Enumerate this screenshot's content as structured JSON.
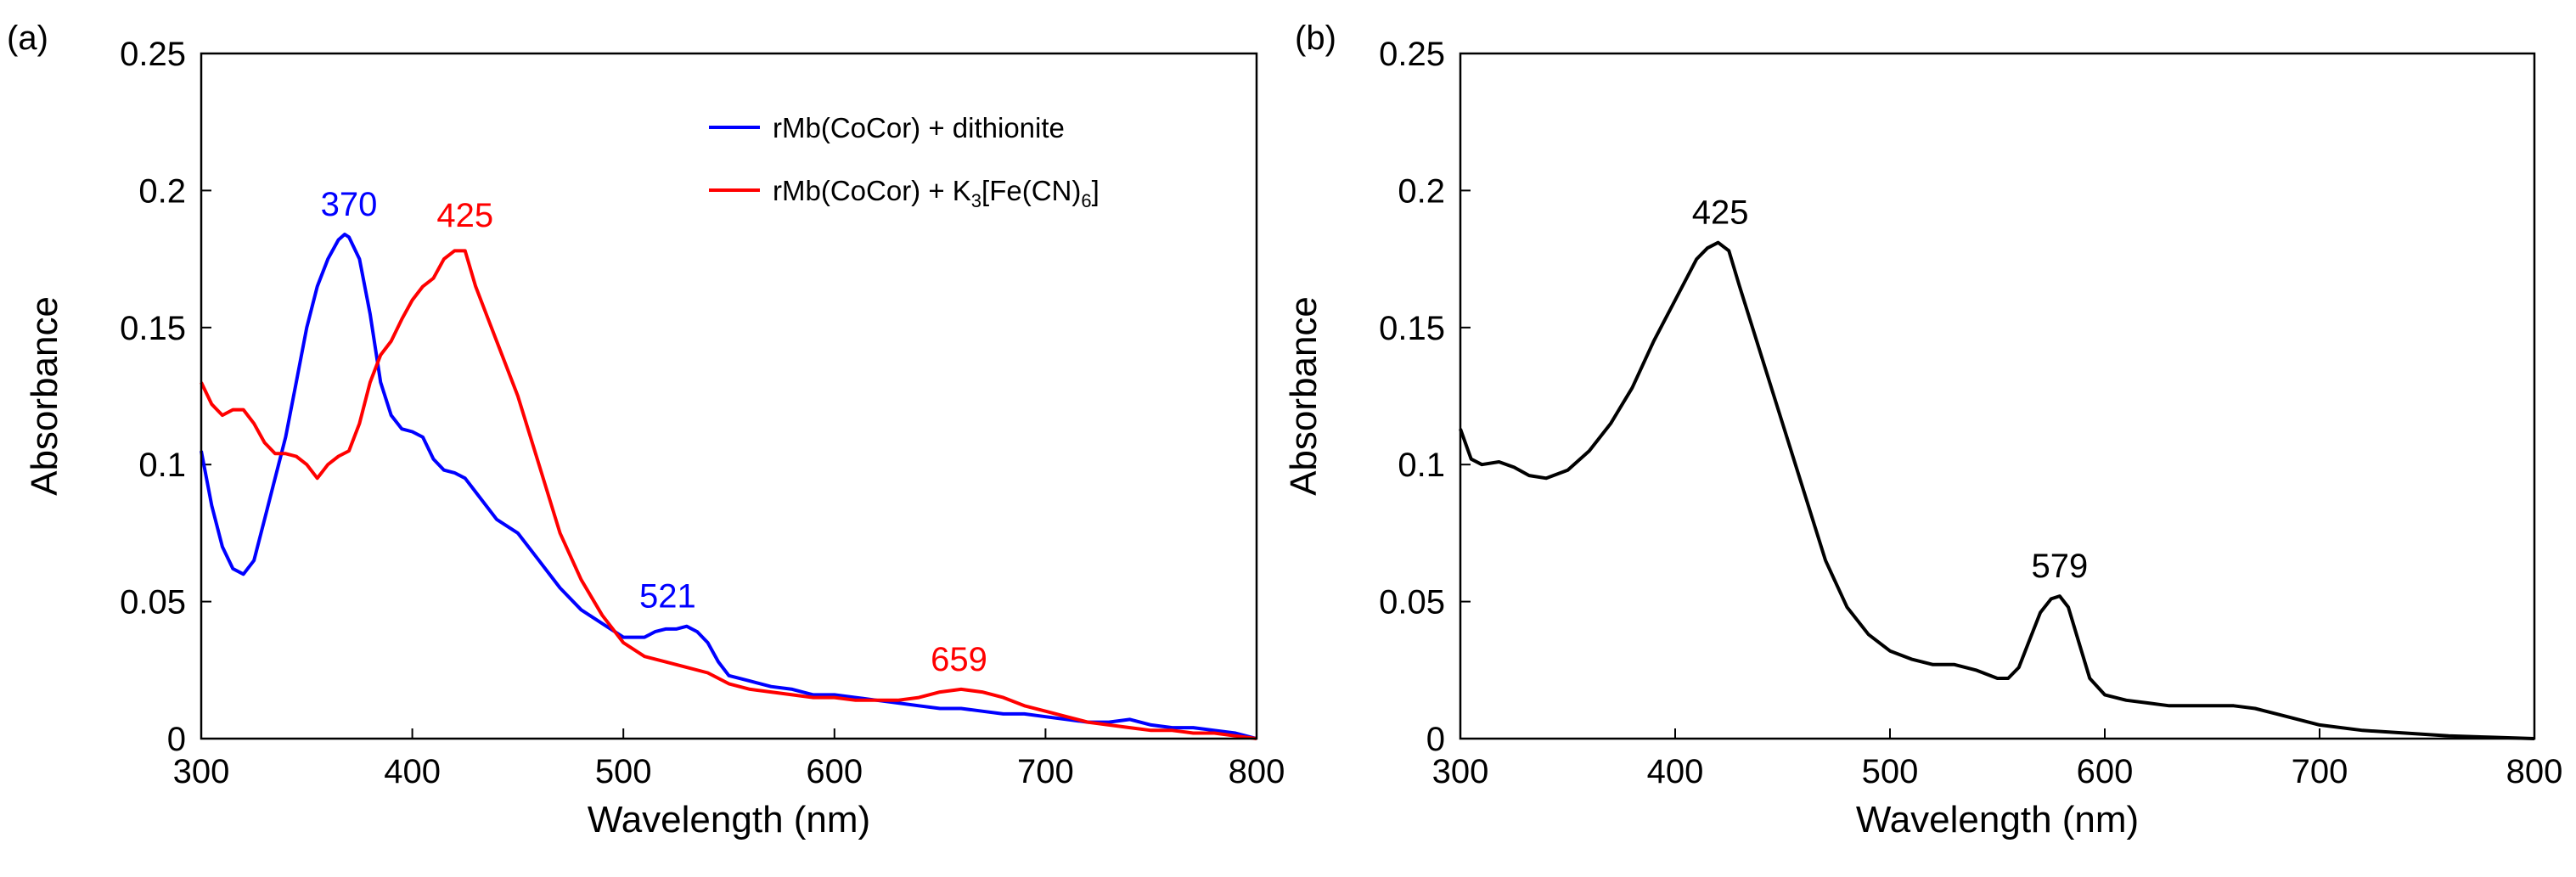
{
  "chart_data": [
    {
      "panel_label": "(a)",
      "type": "line",
      "xlabel": "Wavelength (nm)",
      "ylabel": "Absorbance",
      "xlim": [
        300,
        800
      ],
      "ylim": [
        0,
        0.25
      ],
      "xticks": [
        300,
        400,
        500,
        600,
        700,
        800
      ],
      "yticks": [
        0,
        0.05,
        0.1,
        0.15,
        0.2,
        0.25
      ],
      "ytick_labels": [
        "0",
        "0.05",
        "0.1",
        "0.15",
        "0.2",
        "0.25"
      ],
      "legend_position": "top-right",
      "series": [
        {
          "name": "rMb(CoCor) + dithionite",
          "color": "#0000ff",
          "x": [
            300,
            305,
            310,
            315,
            320,
            325,
            330,
            335,
            340,
            345,
            350,
            355,
            360,
            365,
            368,
            370,
            375,
            380,
            385,
            390,
            395,
            400,
            405,
            410,
            415,
            420,
            425,
            430,
            440,
            450,
            460,
            470,
            480,
            490,
            500,
            510,
            515,
            520,
            525,
            530,
            535,
            540,
            545,
            550,
            560,
            570,
            580,
            590,
            600,
            610,
            620,
            630,
            640,
            650,
            660,
            670,
            680,
            690,
            700,
            710,
            720,
            730,
            740,
            750,
            760,
            770,
            780,
            790,
            800
          ],
          "y": [
            0.105,
            0.085,
            0.07,
            0.062,
            0.06,
            0.065,
            0.08,
            0.095,
            0.11,
            0.13,
            0.15,
            0.165,
            0.175,
            0.182,
            0.184,
            0.183,
            0.175,
            0.155,
            0.13,
            0.118,
            0.113,
            0.112,
            0.11,
            0.102,
            0.098,
            0.097,
            0.095,
            0.09,
            0.08,
            0.075,
            0.065,
            0.055,
            0.047,
            0.042,
            0.037,
            0.037,
            0.039,
            0.04,
            0.04,
            0.041,
            0.039,
            0.035,
            0.028,
            0.023,
            0.021,
            0.019,
            0.018,
            0.016,
            0.016,
            0.015,
            0.014,
            0.013,
            0.012,
            0.011,
            0.011,
            0.01,
            0.009,
            0.009,
            0.008,
            0.007,
            0.006,
            0.006,
            0.007,
            0.005,
            0.004,
            0.004,
            0.003,
            0.002,
            0.0
          ]
        },
        {
          "name": "rMb(CoCor) + K3[Fe(CN)6]",
          "color": "#ff0000",
          "x": [
            300,
            305,
            310,
            315,
            320,
            325,
            330,
            335,
            340,
            345,
            350,
            355,
            360,
            365,
            370,
            375,
            380,
            385,
            390,
            395,
            400,
            405,
            410,
            415,
            420,
            425,
            430,
            435,
            440,
            450,
            460,
            470,
            480,
            490,
            500,
            510,
            520,
            530,
            540,
            550,
            560,
            570,
            580,
            590,
            600,
            610,
            620,
            630,
            640,
            650,
            660,
            670,
            680,
            690,
            700,
            710,
            720,
            730,
            740,
            750,
            760,
            770,
            780,
            790,
            800
          ],
          "y": [
            0.13,
            0.122,
            0.118,
            0.12,
            0.12,
            0.115,
            0.108,
            0.104,
            0.104,
            0.103,
            0.1,
            0.095,
            0.1,
            0.103,
            0.105,
            0.115,
            0.13,
            0.14,
            0.145,
            0.153,
            0.16,
            0.165,
            0.168,
            0.175,
            0.178,
            0.178,
            0.165,
            0.155,
            0.145,
            0.125,
            0.1,
            0.075,
            0.058,
            0.045,
            0.035,
            0.03,
            0.028,
            0.026,
            0.024,
            0.02,
            0.018,
            0.017,
            0.016,
            0.015,
            0.015,
            0.014,
            0.014,
            0.014,
            0.015,
            0.017,
            0.018,
            0.017,
            0.015,
            0.012,
            0.01,
            0.008,
            0.006,
            0.005,
            0.004,
            0.003,
            0.003,
            0.002,
            0.002,
            0.001,
            0.0
          ]
        }
      ],
      "annotations": [
        {
          "text": "370",
          "x": 370,
          "y": 0.184,
          "color": "#0000ff"
        },
        {
          "text": "425",
          "x": 425,
          "y": 0.18,
          "color": "#ff0000"
        },
        {
          "text": "521",
          "x": 521,
          "y": 0.041,
          "color": "#0000ff"
        },
        {
          "text": "659",
          "x": 659,
          "y": 0.018,
          "color": "#ff0000"
        }
      ]
    },
    {
      "panel_label": "(b)",
      "type": "line",
      "xlabel": "Wavelength (nm)",
      "ylabel": "Absorbance",
      "xlim": [
        300,
        800
      ],
      "ylim": [
        0,
        0.25
      ],
      "xticks": [
        300,
        400,
        500,
        600,
        700,
        800
      ],
      "yticks": [
        0,
        0.05,
        0.1,
        0.15,
        0.2,
        0.25
      ],
      "ytick_labels": [
        "0",
        "0.05",
        "0.1",
        "0.15",
        "0.2",
        "0.25"
      ],
      "series": [
        {
          "name": "",
          "color": "#000000",
          "x": [
            300,
            305,
            310,
            318,
            325,
            332,
            340,
            350,
            360,
            370,
            380,
            390,
            400,
            410,
            415,
            420,
            425,
            430,
            440,
            450,
            460,
            470,
            480,
            490,
            500,
            510,
            520,
            530,
            540,
            550,
            555,
            560,
            565,
            570,
            575,
            579,
            583,
            588,
            593,
            600,
            610,
            620,
            630,
            640,
            650,
            660,
            670,
            680,
            690,
            700,
            720,
            740,
            760,
            780,
            800
          ],
          "y": [
            0.113,
            0.102,
            0.1,
            0.101,
            0.099,
            0.096,
            0.095,
            0.098,
            0.105,
            0.115,
            0.128,
            0.145,
            0.16,
            0.175,
            0.179,
            0.181,
            0.178,
            0.165,
            0.14,
            0.115,
            0.09,
            0.065,
            0.048,
            0.038,
            0.032,
            0.029,
            0.027,
            0.027,
            0.025,
            0.022,
            0.022,
            0.026,
            0.036,
            0.046,
            0.051,
            0.052,
            0.048,
            0.035,
            0.022,
            0.016,
            0.014,
            0.013,
            0.012,
            0.012,
            0.012,
            0.012,
            0.011,
            0.009,
            0.007,
            0.005,
            0.003,
            0.002,
            0.001,
            0.0005,
            0.0
          ]
        }
      ],
      "annotations": [
        {
          "text": "425",
          "x": 421,
          "y": 0.181,
          "color": "#000000"
        },
        {
          "text": "579",
          "x": 579,
          "y": 0.052,
          "color": "#000000"
        }
      ]
    }
  ]
}
